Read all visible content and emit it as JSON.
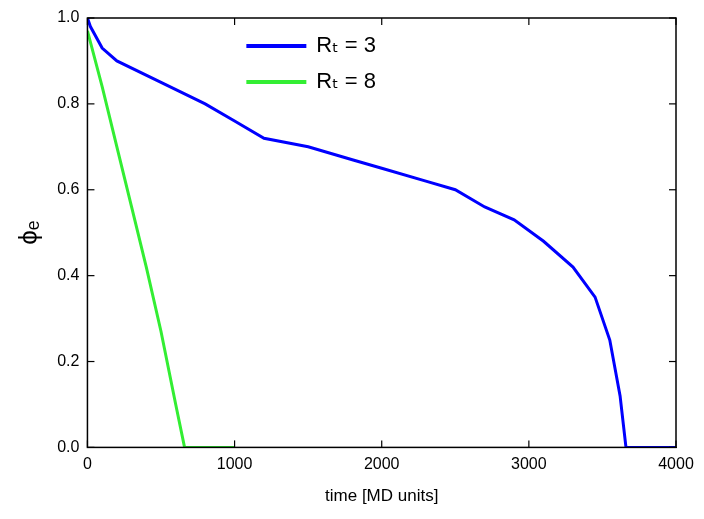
{
  "chart_data": {
    "type": "line",
    "x_label": "time [MD units]",
    "y_label": "ϕₑ",
    "xlim": [
      0,
      4000
    ],
    "xticks": [
      0,
      1000,
      2000,
      3000,
      4000
    ],
    "ylim": [
      0,
      1.0
    ],
    "yticks": [
      {
        "value": 0,
        "label": "0.0"
      },
      0.2,
      0.4,
      0.6,
      0.8,
      {
        "value": 1.0,
        "label": "1.0"
      }
    ],
    "grid": false,
    "legend": "top",
    "series": [
      {
        "name": "Rₜ = 3",
        "color": "#0000ff",
        "line_style": "solid",
        "x": [
          0,
          20,
          100,
          200,
          500,
          800,
          1000,
          1200,
          1500,
          1800,
          2000,
          2300,
          2500,
          2700,
          2900,
          3100,
          3300,
          3450,
          3550,
          3620,
          3660,
          4000
        ],
        "values": [
          1.0,
          0.98,
          0.93,
          0.9,
          0.85,
          0.8,
          0.76,
          0.72,
          0.7,
          0.67,
          0.65,
          0.62,
          0.6,
          0.56,
          0.53,
          0.48,
          0.42,
          0.35,
          0.25,
          0.12,
          0.0,
          0.0
        ]
      },
      {
        "name": "Rₜ = 8",
        "color": "#33ee33",
        "line_style": "solid",
        "x": [
          0,
          100,
          200,
          300,
          400,
          500,
          600,
          660,
          1000
        ],
        "values": [
          0.97,
          0.84,
          0.7,
          0.56,
          0.42,
          0.27,
          0.1,
          0.0,
          0.0
        ]
      }
    ]
  }
}
